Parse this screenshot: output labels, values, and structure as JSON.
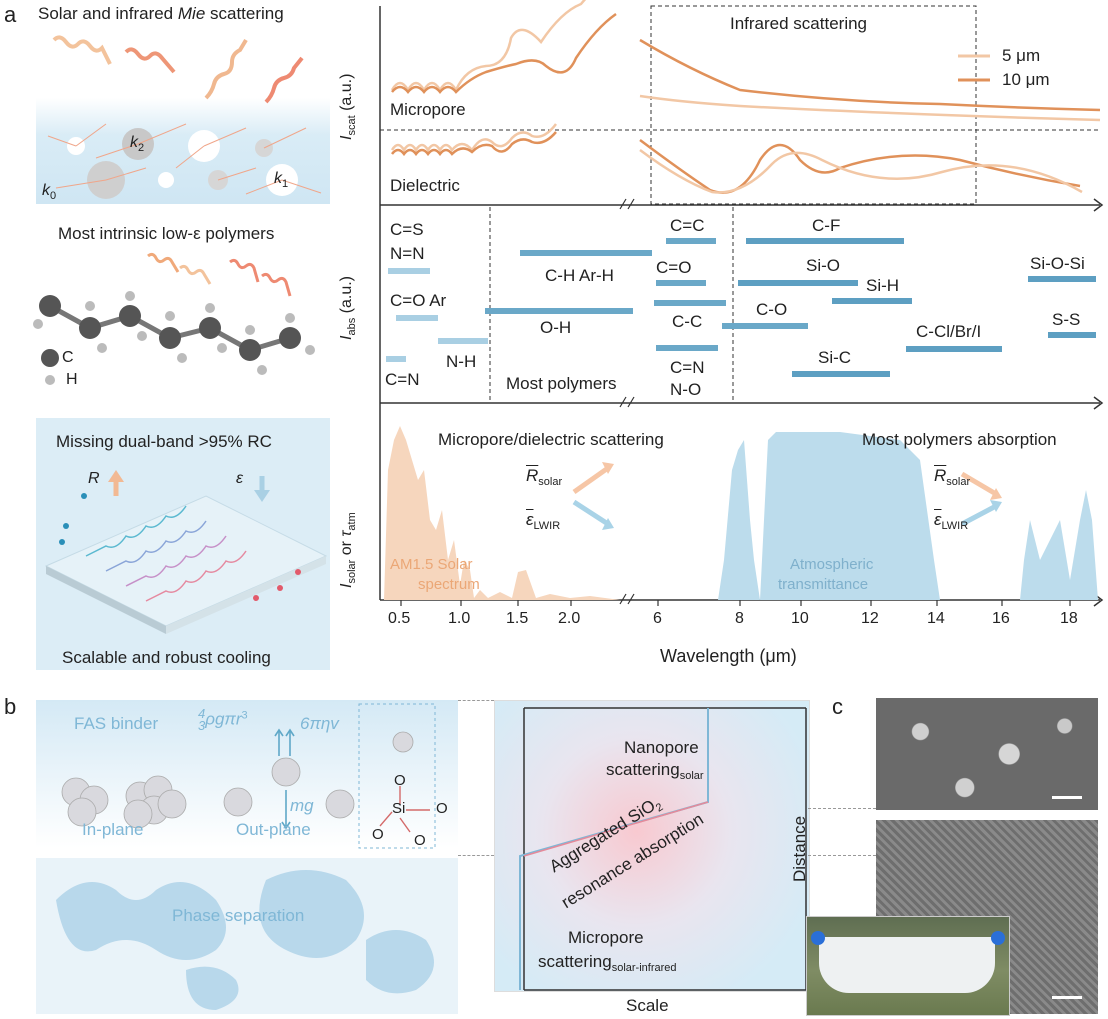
{
  "panel_a": {
    "letter": "a",
    "mie_title": "Solar and infrared ",
    "mie_title_italic": "Mie",
    "mie_title_end": " scattering",
    "k0": "k",
    "k0_sub": "0",
    "k1": "k",
    "k1_sub": "1",
    "k2": "k",
    "k2_sub": "2",
    "polymer_title": "Most intrinsic low-ε polymers",
    "legend_c": "C",
    "legend_h": "H",
    "missing_title": "Missing dual-band >95% RC",
    "r_label": "R",
    "eps_label": "ε",
    "scalable_title": "Scalable and robust cooling"
  },
  "scatter_plot": {
    "ylabel": "I",
    "ylabel_sub": "scat",
    "ylabel_unit": " (a.u.)",
    "box_title": "Infrared scattering",
    "legend": [
      "5 μm",
      "10 μm"
    ],
    "colors": {
      "5um": "#f2c7a5",
      "10um": "#e0915a"
    },
    "micropore_label": "Micropore",
    "dielectric_label": "Dielectric"
  },
  "abs_plot": {
    "ylabel": "I",
    "ylabel_sub": "abs",
    "ylabel_unit": " (a.u.)",
    "most_polymers": "Most polymers",
    "bonds": [
      "C=S",
      "N=N",
      "C=O Ar",
      "N-H",
      "C=N",
      "C-H Ar-H",
      "O-H",
      "C=C",
      "C=O",
      "C-C",
      "C=N",
      "N-O",
      "C-F",
      "Si-O",
      "Si-H",
      "C-O",
      "Si-C",
      "C-Cl/Br/I",
      "Si-O-Si",
      "S-S"
    ]
  },
  "solar_plot": {
    "ylabel_a": "I",
    "ylabel_a_sub": "solar",
    "ylabel_or": " or ",
    "ylabel_b": "τ",
    "ylabel_b_sub": "atm",
    "scatter_title": "Micropore/dielectric scattering",
    "absorb_title": "Most polymers absorption",
    "r_solar": "R",
    "r_solar_sub": "solar",
    "eps_lwir": "ε",
    "eps_lwir_sub": "LWIR",
    "am15_line1": "AM1.5 Solar",
    "am15_line2": "spectrum",
    "atm_line1": "Atmospheric",
    "atm_line2": "transmittance",
    "xlabel": "Wavelength (μm)",
    "xticks_left": [
      "0.5",
      "1.0",
      "1.5",
      "2.0"
    ],
    "xticks_right": [
      "6",
      "8",
      "10",
      "12",
      "14",
      "16",
      "18"
    ]
  },
  "panel_b": {
    "letter": "b",
    "fas_binder": "FAS binder",
    "formula_frac_num": "4",
    "formula_frac_den": "3",
    "formula_rest": "ρgπr",
    "formula_exp": "3",
    "formula_drag": "6πηv",
    "mg": "mg",
    "in_plane": "In-plane",
    "out_plane": "Out-plane",
    "o_atom": "O",
    "si_atom": "Si",
    "phase_sep": "Phase separation",
    "nanopore_line1": "Nanopore",
    "nanopore_line2": "scattering",
    "nanopore_sub": "solar",
    "aggregated_line1": "Aggregated SiO",
    "aggregated_sub": "2",
    "aggregated_line2": "resonance absorption",
    "micropore_line1": "Micropore",
    "micropore_line2": "scattering",
    "micropore_sub": "solar-infrared",
    "xlabel": "Scale",
    "ylabel": "Distance"
  },
  "panel_c": {
    "letter": "c"
  }
}
